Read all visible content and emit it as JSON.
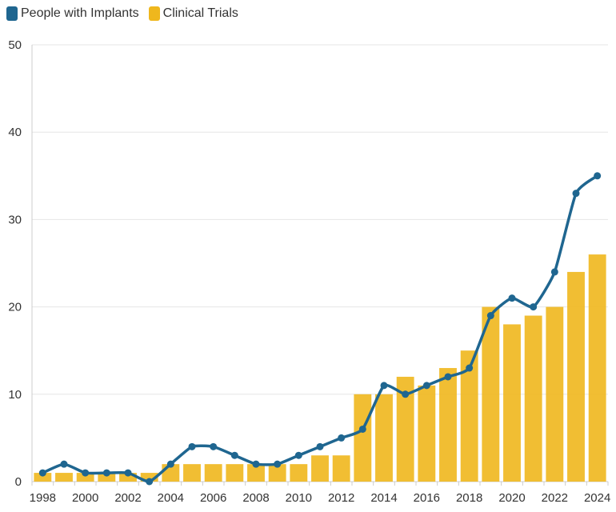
{
  "chart_data": {
    "type": "bar+line",
    "title": "",
    "xlabel": "",
    "ylabel": "",
    "x": [
      1998,
      1999,
      2000,
      2001,
      2002,
      2003,
      2004,
      2005,
      2006,
      2007,
      2008,
      2009,
      2010,
      2011,
      2012,
      2013,
      2014,
      2015,
      2016,
      2017,
      2018,
      2019,
      2020,
      2021,
      2022,
      2023,
      2024
    ],
    "x_tick_labels": [
      "1998",
      "2000",
      "2002",
      "2004",
      "2006",
      "2008",
      "2010",
      "2012",
      "2014",
      "2016",
      "2018",
      "2020",
      "2022",
      "2024"
    ],
    "ylim": [
      0,
      50
    ],
    "y_ticks": [
      "0",
      "10",
      "20",
      "30",
      "40",
      "50"
    ],
    "grid": true,
    "legend_position": "top-left",
    "series": [
      {
        "name": "People with Implants",
        "type": "line",
        "color": "#1f6690",
        "values": [
          1,
          2,
          1,
          1,
          1,
          0,
          2,
          4,
          4,
          3,
          2,
          2,
          3,
          4,
          5,
          6,
          11,
          10,
          11,
          12,
          13,
          19,
          21,
          20,
          24,
          33,
          35
        ]
      },
      {
        "name": "Clinical Trials",
        "type": "bar",
        "color": "#efb71d",
        "values": [
          1,
          1,
          1,
          1,
          1,
          1,
          2,
          2,
          2,
          2,
          2,
          2,
          2,
          3,
          3,
          10,
          10,
          12,
          11,
          13,
          15,
          20,
          18,
          19,
          20,
          24,
          26
        ]
      }
    ]
  },
  "legend": {
    "items": [
      {
        "label": "People with Implants",
        "color": "#1f6690"
      },
      {
        "label": "Clinical Trials",
        "color": "#efb71d"
      }
    ]
  }
}
